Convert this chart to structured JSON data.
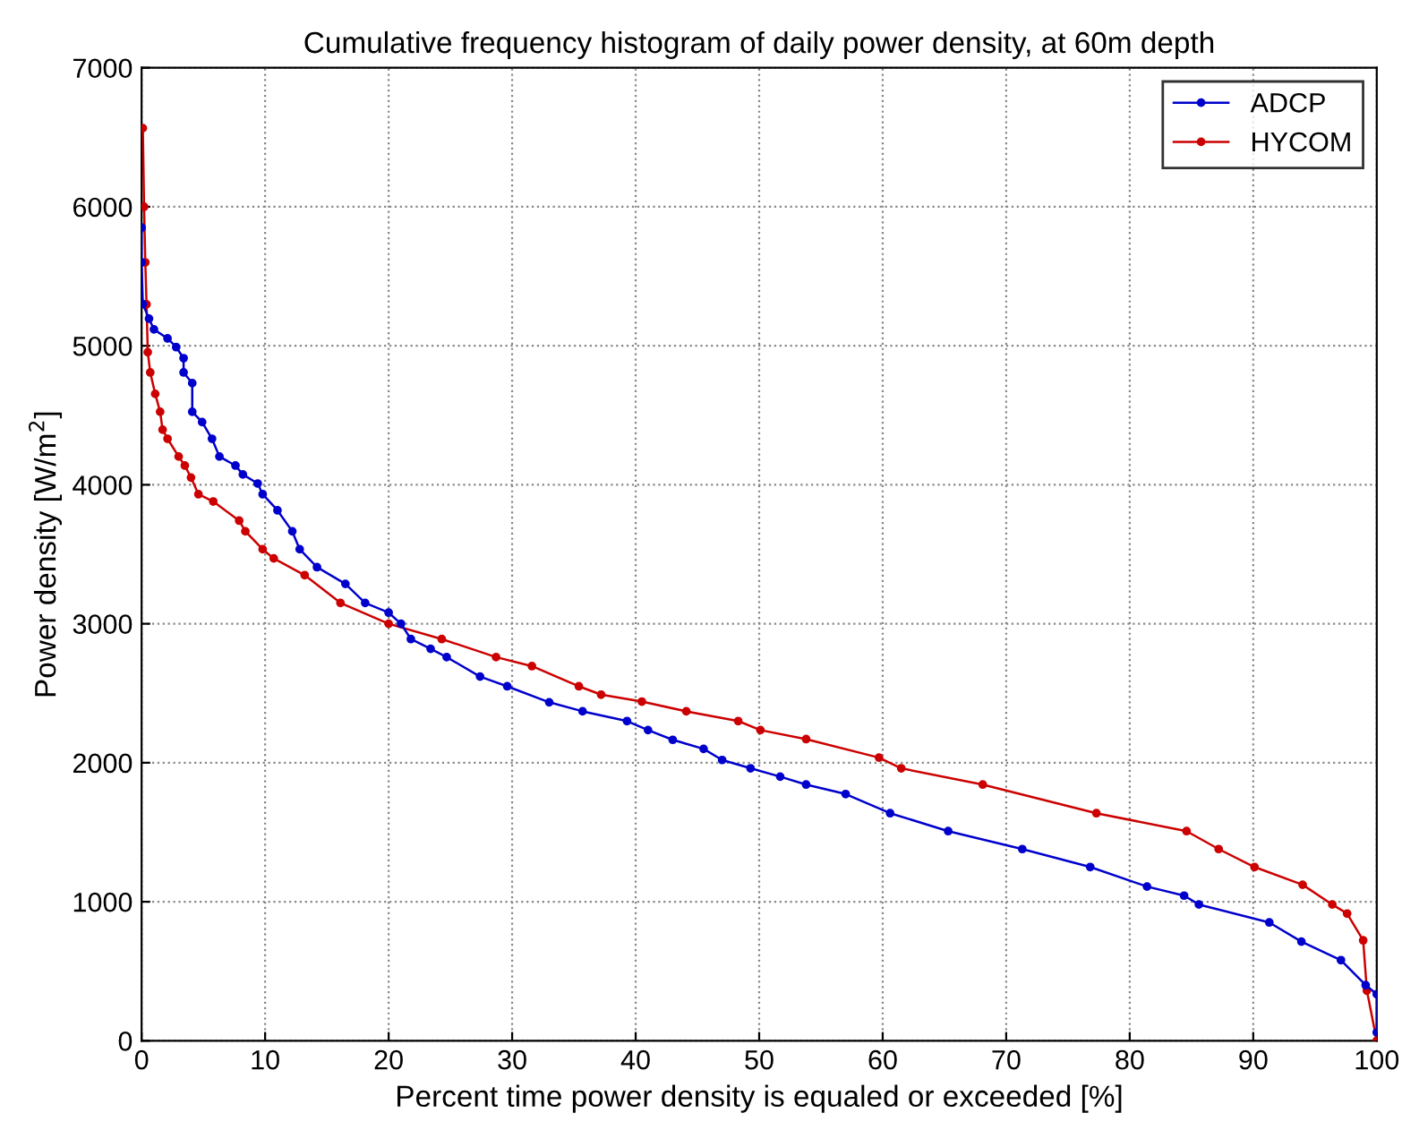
{
  "chart_data": {
    "type": "line",
    "title": "Cumulative frequency histogram of daily power density, at 60m depth",
    "xlabel": "Percent time power density is equaled or exceeded [%]",
    "ylabel": "Power density [W/m$^{2}$]",
    "xlim": [
      0,
      100
    ],
    "ylim": [
      0,
      7000
    ],
    "xticks": [
      0,
      10,
      20,
      30,
      40,
      50,
      60,
      70,
      80,
      90,
      100
    ],
    "yticks": [
      0,
      1000,
      2000,
      3000,
      4000,
      5000,
      6000,
      7000
    ],
    "grid": true,
    "legend": "top right",
    "marker": "circle",
    "line_style": "solid",
    "series": [
      {
        "name": "ADCP",
        "color": "#0000cc",
        "x": [
          0,
          0,
          0.1,
          0.6,
          1.0,
          2.1,
          2.8,
          3.4,
          3.4,
          4.1,
          4.1,
          4.9,
          5.7,
          6.3,
          7.6,
          8.2,
          9.4,
          9.8,
          11.0,
          12.2,
          12.8,
          14.2,
          16.5,
          18.1,
          20.0,
          21.0,
          21.8,
          23.4,
          24.7,
          27.4,
          29.6,
          33.0,
          35.7,
          39.3,
          41.0,
          43.0,
          45.5,
          47.0,
          49.3,
          51.7,
          53.8,
          57.0,
          60.6,
          65.3,
          71.3,
          76.8,
          81.4,
          84.4,
          85.6,
          91.3,
          93.9,
          97.1,
          99.1,
          100,
          100
        ],
        "values": [
          5850,
          5600,
          5300,
          5195,
          5118,
          5053,
          4990,
          4911,
          4808,
          4731,
          4525,
          4451,
          4331,
          4203,
          4138,
          4074,
          4009,
          3932,
          3816,
          3665,
          3536,
          3407,
          3287,
          3150,
          3080,
          3000,
          2890,
          2820,
          2760,
          2620,
          2550,
          2435,
          2370,
          2300,
          2235,
          2165,
          2100,
          2020,
          1960,
          1900,
          1843,
          1775,
          1637,
          1508,
          1379,
          1250,
          1109,
          1044,
          980,
          851,
          713,
          580,
          400,
          335,
          60
        ]
      },
      {
        "name": "HYCOM",
        "color": "#cc0000",
        "x": [
          0.1,
          0.2,
          0.3,
          0.4,
          0.5,
          0.7,
          1.1,
          1.5,
          1.7,
          2.1,
          3.0,
          3.5,
          4.0,
          4.6,
          5.8,
          7.9,
          8.4,
          9.8,
          10.7,
          13.2,
          16.1,
          20.0,
          24.3,
          28.7,
          31.6,
          35.4,
          37.2,
          40.5,
          44.1,
          48.3,
          50.1,
          53.8,
          59.7,
          61.5,
          68.1,
          77.3,
          84.6,
          87.2,
          90.1,
          94.0,
          96.4,
          97.6,
          98.9,
          99.2,
          100
        ],
        "values": [
          6566,
          6000,
          5600,
          5298,
          4954,
          4808,
          4654,
          4525,
          4396,
          4331,
          4203,
          4138,
          4052,
          3932,
          3880,
          3742,
          3665,
          3536,
          3470,
          3350,
          3150,
          3000,
          2890,
          2760,
          2695,
          2550,
          2490,
          2440,
          2370,
          2300,
          2235,
          2170,
          2037,
          1960,
          1843,
          1637,
          1508,
          1379,
          1250,
          1122,
          980,
          915,
          722,
          361,
          0
        ]
      }
    ]
  }
}
